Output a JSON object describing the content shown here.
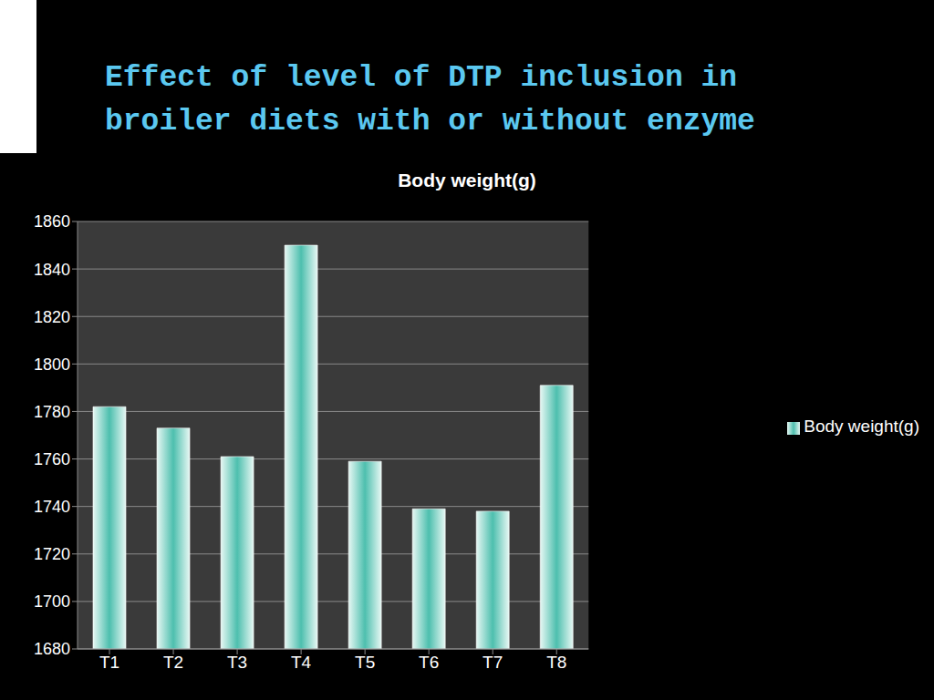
{
  "header": {
    "title": "Effect of level of DTP inclusion in broiler diets with or without enzyme"
  },
  "chart_data": {
    "type": "bar",
    "title": "Body weight(g)",
    "categories": [
      "T1",
      "T2",
      "T3",
      "T4",
      "T5",
      "T6",
      "T7",
      "T8"
    ],
    "series": [
      {
        "name": "Body weight(g)",
        "color": "#4dbfae",
        "values": [
          1782,
          1773,
          1761,
          1850,
          1759,
          1739,
          1738,
          1791
        ]
      }
    ],
    "ylim": [
      1680,
      1860
    ],
    "yticks": [
      1680,
      1700,
      1720,
      1740,
      1760,
      1780,
      1800,
      1820,
      1840,
      1860
    ],
    "grid": true,
    "legend": "right"
  }
}
